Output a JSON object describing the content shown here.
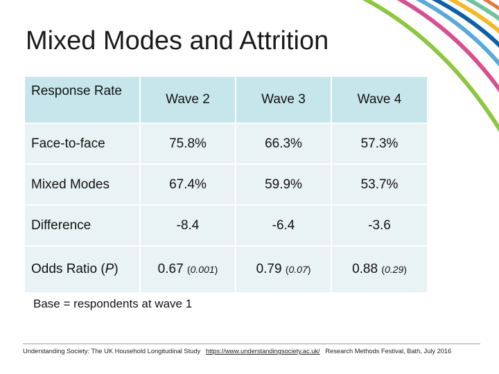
{
  "slide": {
    "title": "Mixed Modes and Attrition",
    "note": "Base = respondents at wave 1"
  },
  "table": {
    "header": {
      "row_label": "Response Rate",
      "columns": [
        "Wave 2",
        "Wave 3",
        "Wave 4"
      ]
    },
    "rows": [
      {
        "label": "Face-to-face",
        "values": [
          "75.8%",
          "66.3%",
          "57.3%"
        ]
      },
      {
        "label": "Mixed Modes",
        "values": [
          "67.4%",
          "59.9%",
          "53.7%"
        ]
      },
      {
        "label": "Difference",
        "values": [
          "-8.4",
          "-6.4",
          "-3.6"
        ]
      }
    ],
    "odds": {
      "label_prefix": "Odds Ratio (",
      "label_italic": "P",
      "label_suffix": ")",
      "cells": [
        {
          "value": "0.67",
          "p_open": "(",
          "p": "0.001",
          "p_close": ")"
        },
        {
          "value": "0.79",
          "p_open": "(",
          "p": "0.07",
          "p_close": ")"
        },
        {
          "value": "0.88",
          "p_open": "(",
          "p": "0.29",
          "p_close": ")"
        }
      ]
    }
  },
  "footer": {
    "study": "Understanding Society: The UK Household Longitudinal Study",
    "url": "https://www.understandingsociety.ac.uk/",
    "event": "Research Methods Festival, Bath, July 2016"
  },
  "colors": {
    "header_bg": "#c7e6ec",
    "row_bg": "#e9f2f4",
    "arc_colors": [
      "#8dc63f",
      "#d94e8f",
      "#5aa9dc",
      "#0d5fa8",
      "#f6b826",
      "#6cc3a0",
      "#e8743b"
    ]
  }
}
